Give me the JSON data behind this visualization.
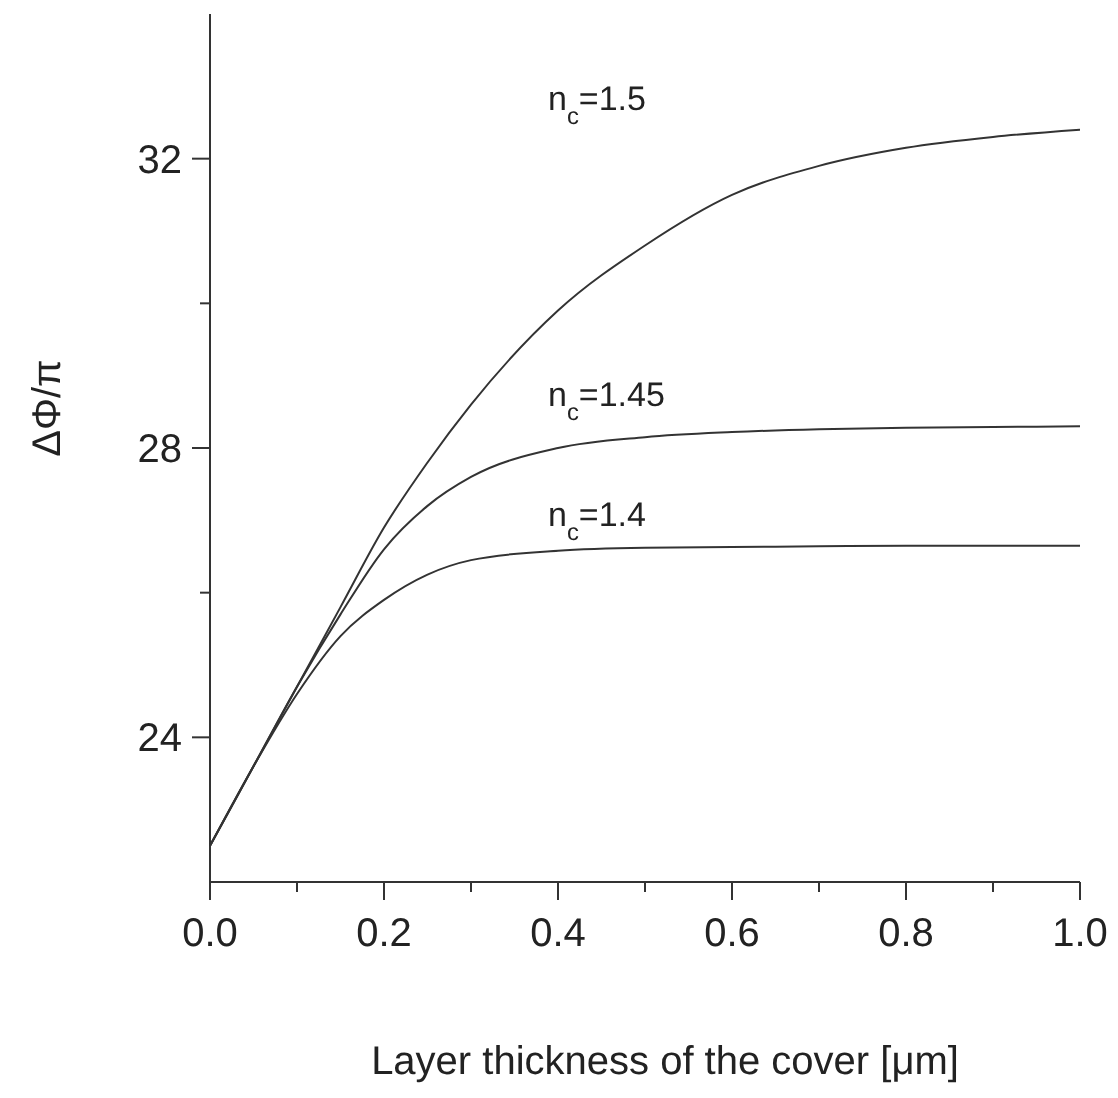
{
  "chart_data": {
    "type": "line",
    "xlabel": "Layer thickness of the cover [μm]",
    "ylabel": "ΔΦ/π",
    "x": [
      0,
      0.05,
      0.1,
      0.15,
      0.2,
      0.25,
      0.3,
      0.4,
      0.5,
      0.6,
      0.7,
      0.8,
      0.9,
      1.0
    ],
    "series": [
      {
        "name": "n$_{c}$=1.5",
        "color": "#333333",
        "values": [
          22.5,
          23.6,
          24.7,
          25.8,
          26.9,
          27.8,
          28.6,
          29.9,
          30.8,
          31.5,
          31.9,
          32.15,
          32.3,
          32.4
        ]
      },
      {
        "name": "n$_{c}$=1.45",
        "color": "#333333",
        "values": [
          22.5,
          23.6,
          24.7,
          25.7,
          26.6,
          27.2,
          27.6,
          28.0,
          28.15,
          28.22,
          28.26,
          28.28,
          28.29,
          28.3
        ]
      },
      {
        "name": "n$_{c}$=1.4",
        "color": "#333333",
        "values": [
          22.5,
          23.6,
          24.6,
          25.4,
          25.9,
          26.25,
          26.45,
          26.58,
          26.62,
          26.63,
          26.64,
          26.65,
          26.65,
          26.65
        ]
      }
    ],
    "xlim": [
      0,
      1.0
    ],
    "xticks": [
      {
        "value": 0,
        "label": "0.0"
      },
      {
        "value": 0.1,
        "label": null
      },
      {
        "value": 0.2,
        "label": "0.2"
      },
      {
        "value": 0.3,
        "label": null
      },
      {
        "value": 0.4,
        "label": "0.4"
      },
      {
        "value": 0.5,
        "label": null
      },
      {
        "value": 0.6,
        "label": "0.6"
      },
      {
        "value": 0.7,
        "label": null
      },
      {
        "value": 0.8,
        "label": "0.8"
      },
      {
        "value": 0.9,
        "label": null
      },
      {
        "value": 1.0,
        "label": "1.0"
      }
    ],
    "ylim": [
      22,
      34
    ],
    "yticks": [
      24,
      {
        "value": 26,
        "label": null
      },
      28,
      {
        "value": 30,
        "label": null
      },
      32
    ],
    "grid": false
  }
}
